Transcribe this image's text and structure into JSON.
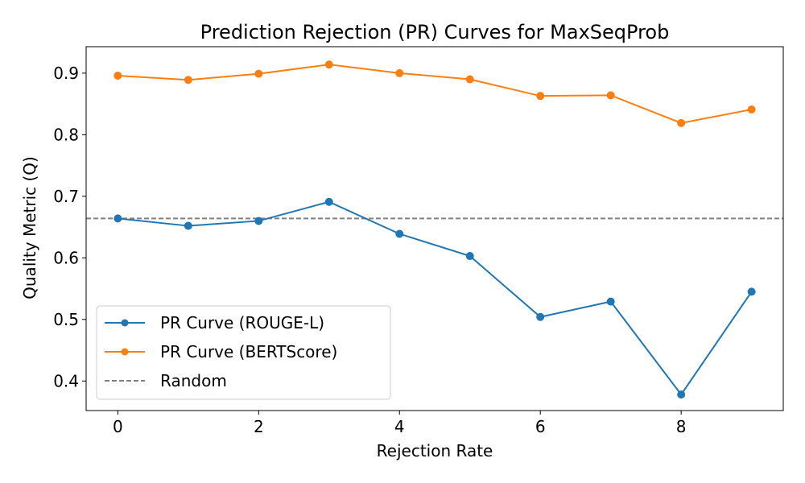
{
  "chart_data": {
    "type": "line",
    "title": "Prediction Rejection (PR) Curves for MaxSeqProb",
    "xlabel": "Rejection Rate",
    "ylabel": "Quality Metric (Q)",
    "xlim": [
      -0.45,
      9.45
    ],
    "ylim": [
      0.352,
      0.943
    ],
    "xticks": [
      0,
      2,
      4,
      6,
      8
    ],
    "yticks": [
      0.4,
      0.5,
      0.6,
      0.7,
      0.8,
      0.9
    ],
    "xtick_labels": [
      "0",
      "2",
      "4",
      "6",
      "8"
    ],
    "ytick_labels": [
      "0.4",
      "0.5",
      "0.6",
      "0.7",
      "0.8",
      "0.9"
    ],
    "x": [
      0,
      1,
      2,
      3,
      4,
      5,
      6,
      7,
      8,
      9
    ],
    "series": [
      {
        "name": "PR Curve (ROUGE-L)",
        "color": "#1f77b4",
        "marker": "circle",
        "values": [
          0.664,
          0.652,
          0.66,
          0.691,
          0.639,
          0.603,
          0.504,
          0.529,
          0.378,
          0.545
        ]
      },
      {
        "name": "PR Curve (BERTScore)",
        "color": "#ff7f0e",
        "marker": "circle",
        "values": [
          0.896,
          0.889,
          0.899,
          0.914,
          0.9,
          0.89,
          0.863,
          0.864,
          0.819,
          0.841
        ]
      }
    ],
    "reference_line": {
      "name": "Random",
      "y": 0.664,
      "color": "#808080",
      "style": "dashed"
    },
    "legend_position": "lower-left",
    "grid": false
  }
}
